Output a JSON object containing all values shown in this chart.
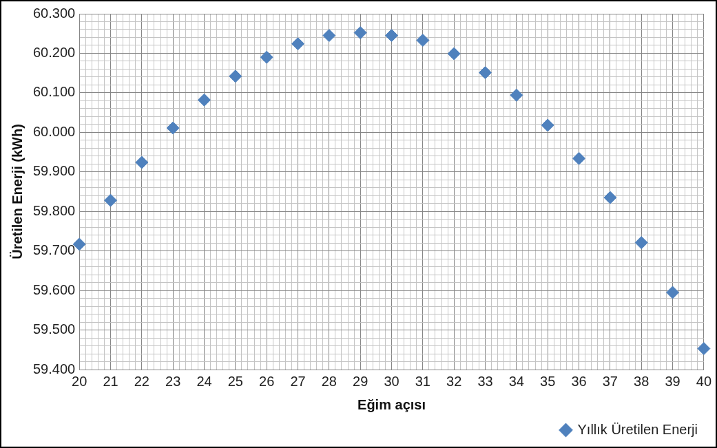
{
  "chart_data": {
    "type": "scatter",
    "xlabel": "Eğim açısı",
    "ylabel": "Üretilen Enerji (kWh)",
    "x": [
      20,
      21,
      22,
      23,
      24,
      25,
      26,
      27,
      28,
      29,
      30,
      31,
      32,
      33,
      34,
      35,
      36,
      37,
      38,
      39,
      40
    ],
    "series": [
      {
        "name": "Yıllık Üretilen Enerji",
        "color": "#4f81bd",
        "values": [
          59717,
          59828,
          59924,
          60011,
          60082,
          60142,
          60190,
          60224,
          60245,
          60252,
          60245,
          60233,
          60199,
          60151,
          60094,
          60018,
          59934,
          59835,
          59721,
          59595,
          59453
        ]
      }
    ],
    "xlim": [
      20,
      40
    ],
    "ylim": [
      59400,
      60300
    ],
    "xticks": [
      20,
      {
        "value": 20.2,
        "label": null
      },
      {
        "value": 20.4,
        "label": null
      },
      {
        "value": 20.6,
        "label": null
      },
      {
        "value": 20.8,
        "label": null
      },
      21,
      {
        "value": 21.2,
        "label": null
      },
      {
        "value": 21.4,
        "label": null
      },
      {
        "value": 21.6,
        "label": null
      },
      {
        "value": 21.8,
        "label": null
      },
      22,
      {
        "value": 22.2,
        "label": null
      },
      {
        "value": 22.4,
        "label": null
      },
      {
        "value": 22.6,
        "label": null
      },
      {
        "value": 22.8,
        "label": null
      },
      23,
      {
        "value": 23.2,
        "label": null
      },
      {
        "value": 23.4,
        "label": null
      },
      {
        "value": 23.6,
        "label": null
      },
      {
        "value": 23.8,
        "label": null
      },
      24,
      {
        "value": 24.2,
        "label": null
      },
      {
        "value": 24.4,
        "label": null
      },
      {
        "value": 24.6,
        "label": null
      },
      {
        "value": 24.8,
        "label": null
      },
      25,
      {
        "value": 25.2,
        "label": null
      },
      {
        "value": 25.4,
        "label": null
      },
      {
        "value": 25.6,
        "label": null
      },
      {
        "value": 25.8,
        "label": null
      },
      26,
      {
        "value": 26.2,
        "label": null
      },
      {
        "value": 26.4,
        "label": null
      },
      {
        "value": 26.6,
        "label": null
      },
      {
        "value": 26.8,
        "label": null
      },
      27,
      {
        "value": 27.2,
        "label": null
      },
      {
        "value": 27.4,
        "label": null
      },
      {
        "value": 27.6,
        "label": null
      },
      {
        "value": 27.8,
        "label": null
      },
      28,
      {
        "value": 28.2,
        "label": null
      },
      {
        "value": 28.4,
        "label": null
      },
      {
        "value": 28.6,
        "label": null
      },
      {
        "value": 28.8,
        "label": null
      },
      29,
      {
        "value": 29.2,
        "label": null
      },
      {
        "value": 29.4,
        "label": null
      },
      {
        "value": 29.6,
        "label": null
      },
      {
        "value": 29.8,
        "label": null
      },
      30,
      {
        "value": 30.2,
        "label": null
      },
      {
        "value": 30.4,
        "label": null
      },
      {
        "value": 30.6,
        "label": null
      },
      {
        "value": 30.8,
        "label": null
      },
      31,
      {
        "value": 31.2,
        "label": null
      },
      {
        "value": 31.4,
        "label": null
      },
      {
        "value": 31.6,
        "label": null
      },
      {
        "value": 31.8,
        "label": null
      },
      32,
      {
        "value": 32.2,
        "label": null
      },
      {
        "value": 32.4,
        "label": null
      },
      {
        "value": 32.6,
        "label": null
      },
      {
        "value": 32.8,
        "label": null
      },
      33,
      {
        "value": 33.2,
        "label": null
      },
      {
        "value": 33.4,
        "label": null
      },
      {
        "value": 33.6,
        "label": null
      },
      {
        "value": 33.8,
        "label": null
      },
      34,
      {
        "value": 34.2,
        "label": null
      },
      {
        "value": 34.4,
        "label": null
      },
      {
        "value": 34.6,
        "label": null
      },
      {
        "value": 34.8,
        "label": null
      },
      35,
      {
        "value": 35.2,
        "label": null
      },
      {
        "value": 35.4,
        "label": null
      },
      {
        "value": 35.6,
        "label": null
      },
      {
        "value": 35.8,
        "label": null
      },
      36,
      {
        "value": 36.2,
        "label": null
      },
      {
        "value": 36.4,
        "label": null
      },
      {
        "value": 36.6,
        "label": null
      },
      {
        "value": 36.8,
        "label": null
      },
      37,
      {
        "value": 37.2,
        "label": null
      },
      {
        "value": 37.4,
        "label": null
      },
      {
        "value": 37.6,
        "label": null
      },
      {
        "value": 37.8,
        "label": null
      },
      38,
      {
        "value": 38.2,
        "label": null
      },
      {
        "value": 38.4,
        "label": null
      },
      {
        "value": 38.6,
        "label": null
      },
      {
        "value": 38.8,
        "label": null
      },
      39,
      {
        "value": 39.2,
        "label": null
      },
      {
        "value": 39.4,
        "label": null
      },
      {
        "value": 39.6,
        "label": null
      },
      {
        "value": 39.8,
        "label": null
      },
      40
    ],
    "yticks": [
      {
        "value": 59400,
        "label": "59.400"
      },
      {
        "value": 59420,
        "label": null
      },
      {
        "value": 59440,
        "label": null
      },
      {
        "value": 59460,
        "label": null
      },
      {
        "value": 59480,
        "label": null
      },
      {
        "value": 59500,
        "label": "59.500"
      },
      {
        "value": 59520,
        "label": null
      },
      {
        "value": 59540,
        "label": null
      },
      {
        "value": 59560,
        "label": null
      },
      {
        "value": 59580,
        "label": null
      },
      {
        "value": 59600,
        "label": "59.600"
      },
      {
        "value": 59620,
        "label": null
      },
      {
        "value": 59640,
        "label": null
      },
      {
        "value": 59660,
        "label": null
      },
      {
        "value": 59680,
        "label": null
      },
      {
        "value": 59700,
        "label": "59.700"
      },
      {
        "value": 59720,
        "label": null
      },
      {
        "value": 59740,
        "label": null
      },
      {
        "value": 59760,
        "label": null
      },
      {
        "value": 59780,
        "label": null
      },
      {
        "value": 59800,
        "label": "59.800"
      },
      {
        "value": 59820,
        "label": null
      },
      {
        "value": 59840,
        "label": null
      },
      {
        "value": 59860,
        "label": null
      },
      {
        "value": 59880,
        "label": null
      },
      {
        "value": 59900,
        "label": "59.900"
      },
      {
        "value": 59920,
        "label": null
      },
      {
        "value": 59940,
        "label": null
      },
      {
        "value": 59960,
        "label": null
      },
      {
        "value": 59980,
        "label": null
      },
      {
        "value": 60000,
        "label": "60.000"
      },
      {
        "value": 60020,
        "label": null
      },
      {
        "value": 60040,
        "label": null
      },
      {
        "value": 60060,
        "label": null
      },
      {
        "value": 60080,
        "label": null
      },
      {
        "value": 60100,
        "label": "60.100"
      },
      {
        "value": 60120,
        "label": null
      },
      {
        "value": 60140,
        "label": null
      },
      {
        "value": 60160,
        "label": null
      },
      {
        "value": 60180,
        "label": null
      },
      {
        "value": 60200,
        "label": "60.200"
      },
      {
        "value": 60220,
        "label": null
      },
      {
        "value": 60240,
        "label": null
      },
      {
        "value": 60260,
        "label": null
      },
      {
        "value": 60280,
        "label": null
      },
      {
        "value": 60300,
        "label": "60.300"
      }
    ],
    "grid": true,
    "legend": "bottom right",
    "marker": "diamond"
  }
}
